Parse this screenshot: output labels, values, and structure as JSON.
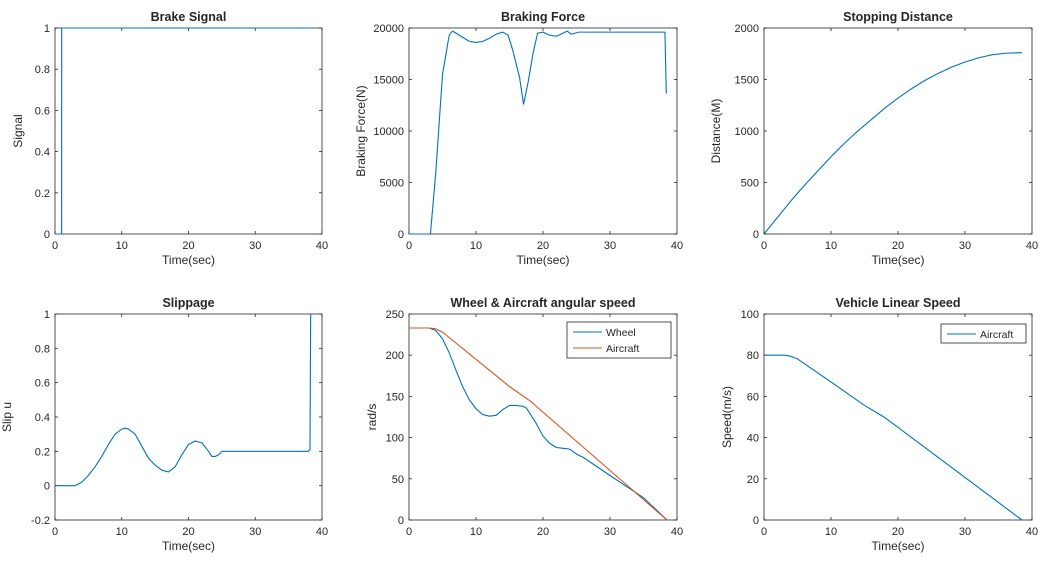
{
  "figure": {
    "background": "#ffffff"
  },
  "colors": {
    "series1": "#0072BD",
    "series2": "#D95319",
    "axis": "#262626"
  },
  "chart_data": [
    {
      "type": "line",
      "title": "Brake Signal",
      "xlabel": "Time(sec)",
      "ylabel": "Signal",
      "xlim": [
        0,
        40
      ],
      "ylim": [
        0,
        1
      ],
      "xticks": [
        0,
        10,
        20,
        30,
        40
      ],
      "yticks": [
        0,
        0.2,
        0.4,
        0.6,
        0.8,
        1
      ],
      "ytick_labels": [
        "0",
        "0.2",
        "0.4",
        "0.6",
        "0.8",
        "1"
      ],
      "series": [
        {
          "x": [
            0,
            0.99,
            1.0,
            38.5
          ],
          "y": [
            0,
            0,
            1,
            1
          ],
          "color": "#0072BD"
        }
      ]
    },
    {
      "type": "line",
      "title": "Braking Force",
      "xlabel": "Time(sec)",
      "ylabel": "Braking Force(N)",
      "xlim": [
        0,
        40
      ],
      "ylim": [
        0,
        20000
      ],
      "xticks": [
        0,
        10,
        20,
        30,
        40
      ],
      "yticks": [
        0,
        5000,
        10000,
        15000,
        20000
      ],
      "ytick_labels": [
        "0",
        "5000",
        "10000",
        "15000",
        "20000"
      ],
      "series": [
        {
          "x": [
            0,
            3,
            3.2,
            4,
            5,
            6,
            6.5,
            7,
            8,
            9,
            10,
            11,
            12,
            13,
            14,
            14.8,
            15.5,
            16.5,
            17.1,
            17.8,
            18.5,
            19.2,
            20,
            21,
            22,
            23,
            23.6,
            24.2,
            24.8,
            25.3,
            26,
            30,
            35,
            38,
            38.2,
            38.4,
            38.5
          ],
          "y": [
            0,
            0,
            0,
            6000,
            15500,
            19300,
            19700,
            19500,
            19100,
            18700,
            18600,
            18700,
            19000,
            19400,
            19600,
            19300,
            17800,
            15200,
            12600,
            14800,
            17500,
            19500,
            19600,
            19300,
            19200,
            19500,
            19700,
            19400,
            19500,
            19600,
            19600,
            19600,
            19600,
            19600,
            19600,
            13700,
            13700
          ],
          "color": "#0072BD"
        }
      ]
    },
    {
      "type": "line",
      "title": "Stopping Distance",
      "xlabel": "Time(sec)",
      "ylabel": "Distance(M)",
      "xlim": [
        0,
        40
      ],
      "ylim": [
        0,
        2000
      ],
      "xticks": [
        0,
        10,
        20,
        30,
        40
      ],
      "yticks": [
        0,
        500,
        1000,
        1500,
        2000
      ],
      "ytick_labels": [
        "0",
        "500",
        "1000",
        "1500",
        "2000"
      ],
      "series": [
        {
          "x": [
            0,
            2,
            4,
            6,
            8,
            10,
            12,
            14,
            16,
            18,
            20,
            22,
            24,
            26,
            28,
            30,
            32,
            34,
            36,
            38,
            38.5
          ],
          "y": [
            0,
            160,
            320,
            470,
            610,
            750,
            880,
            1000,
            1110,
            1220,
            1320,
            1410,
            1490,
            1560,
            1620,
            1670,
            1710,
            1740,
            1755,
            1760,
            1760
          ],
          "color": "#0072BD"
        }
      ]
    },
    {
      "type": "line",
      "title": "Slippage",
      "xlabel": "Time(sec)",
      "ylabel": "Slip u",
      "xlim": [
        0,
        40
      ],
      "ylim": [
        -0.2,
        1
      ],
      "xticks": [
        0,
        10,
        20,
        30,
        40
      ],
      "yticks": [
        -0.2,
        0,
        0.2,
        0.4,
        0.6,
        0.8,
        1
      ],
      "ytick_labels": [
        "-0.2",
        "0",
        "0.2",
        "0.4",
        "0.6",
        "0.8",
        "1"
      ],
      "series": [
        {
          "x": [
            0,
            3,
            4,
            5,
            6,
            7,
            8,
            9,
            10,
            10.5,
            11,
            12,
            13,
            14,
            15,
            16,
            17,
            18,
            19,
            20,
            21,
            22,
            23,
            23.5,
            24,
            24.5,
            25,
            26,
            30,
            35,
            38,
            38.1,
            38.2,
            38.3
          ],
          "y": [
            0,
            0,
            0.02,
            0.06,
            0.11,
            0.17,
            0.24,
            0.3,
            0.33,
            0.335,
            0.33,
            0.3,
            0.23,
            0.16,
            0.12,
            0.09,
            0.08,
            0.11,
            0.18,
            0.24,
            0.26,
            0.25,
            0.2,
            0.17,
            0.17,
            0.18,
            0.2,
            0.2,
            0.2,
            0.2,
            0.2,
            0.21,
            0.21,
            1
          ],
          "color": "#0072BD"
        }
      ]
    },
    {
      "type": "line",
      "title": "Wheel & Aircraft angular speed",
      "xlabel": "",
      "ylabel": "rad/s",
      "xlim": [
        0,
        40
      ],
      "ylim": [
        0,
        250
      ],
      "xticks": [
        0,
        10,
        20,
        30,
        40
      ],
      "yticks": [
        0,
        50,
        100,
        150,
        200,
        250
      ],
      "ytick_labels": [
        "0",
        "50",
        "100",
        "150",
        "200",
        "250"
      ],
      "legend": "top-right",
      "series": [
        {
          "name": "Wheel",
          "x": [
            0,
            3,
            4,
            5,
            6,
            7,
            8,
            9,
            10,
            11,
            12,
            13,
            14,
            15,
            16,
            17,
            17.5,
            18,
            19,
            20,
            21,
            22,
            23,
            24,
            25,
            26,
            30,
            35,
            38.5
          ],
          "y": [
            233,
            233,
            230,
            220,
            203,
            182,
            162,
            146,
            135,
            128,
            126,
            127,
            134,
            139,
            139,
            138,
            136,
            130,
            117,
            102,
            93,
            88,
            87,
            86,
            80,
            76,
            54,
            27,
            0
          ],
          "color": "#0072BD"
        },
        {
          "name": "Aircraft",
          "x": [
            0,
            3,
            4,
            5,
            10,
            15,
            18,
            38.5
          ],
          "y": [
            233,
            233,
            232,
            228,
            195,
            162,
            145,
            0
          ],
          "color": "#D95319"
        }
      ]
    },
    {
      "type": "line",
      "title": "Vehicle Linear Speed",
      "xlabel": "Time(sec)",
      "ylabel": "Speed(m/s)",
      "xlim": [
        0,
        40
      ],
      "ylim": [
        0,
        100
      ],
      "xticks": [
        0,
        10,
        20,
        30,
        40
      ],
      "yticks": [
        0,
        20,
        40,
        60,
        80,
        100
      ],
      "ytick_labels": [
        "0",
        "20",
        "40",
        "60",
        "80",
        "100"
      ],
      "legend": "top-right",
      "series": [
        {
          "name": "Aircraft",
          "x": [
            0,
            3,
            4,
            5,
            10,
            15,
            18,
            38.5
          ],
          "y": [
            80,
            80,
            79.5,
            78.2,
            67,
            55.6,
            49.8,
            0
          ],
          "color": "#0072BD"
        }
      ]
    }
  ]
}
